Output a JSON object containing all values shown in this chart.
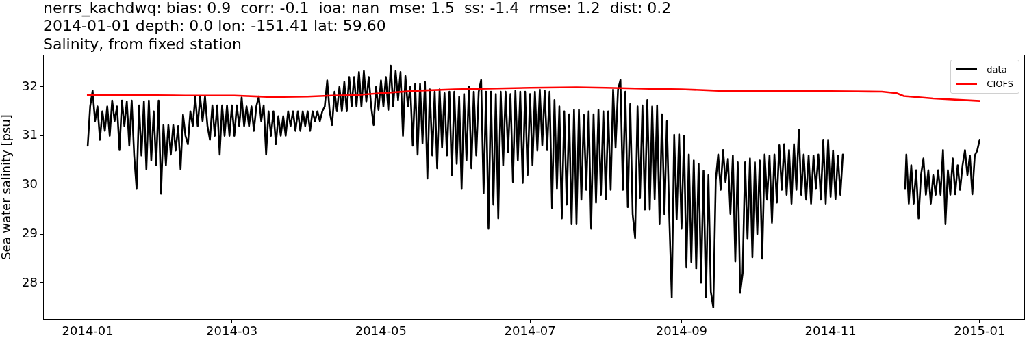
{
  "chart_data": {
    "type": "line",
    "title": "nerrs_kachdwq: bias: 0.9  corr: -0.1  ioa: nan  mse: 1.5  ss: -1.4  rmse: 1.2  dist: 0.2\n2014-01-01 depth: 0.0 lon: -151.41 lat: 59.60\nSalinity, from fixed station",
    "ylabel": "Sea water salinity [psu]",
    "xlim": [
      "2013-12-13T18:00",
      "2015-01-19T06:00"
    ],
    "xticks": [
      "2014-01",
      "2014-03",
      "2014-05",
      "2014-07",
      "2014-09",
      "2014-11",
      "2015-01"
    ],
    "ylim": [
      27.26,
      32.65
    ],
    "yticks": [
      28,
      29,
      30,
      31,
      32
    ],
    "legend": "top right",
    "series": [
      {
        "name": "data",
        "color": "#000000",
        "x": [
          "2014-01-01",
          "2014-01-02",
          "2014-01-03",
          "2014-01-04",
          "2014-01-05",
          "2014-01-06",
          "2014-01-07",
          "2014-01-08",
          "2014-01-09",
          "2014-01-10",
          "2014-01-11",
          "2014-01-12",
          "2014-01-13",
          "2014-01-14",
          "2014-01-15",
          "2014-01-16",
          "2014-01-17",
          "2014-01-18",
          "2014-01-19",
          "2014-01-20",
          "2014-01-21",
          "2014-01-22",
          "2014-01-23",
          "2014-01-24",
          "2014-01-25",
          "2014-01-26",
          "2014-01-27",
          "2014-01-28",
          "2014-01-29",
          "2014-01-30",
          "2014-01-31",
          "2014-02-01",
          "2014-02-02",
          "2014-02-03",
          "2014-02-04",
          "2014-02-05",
          "2014-02-06",
          "2014-02-07",
          "2014-02-08",
          "2014-02-09",
          "2014-02-10",
          "2014-02-11",
          "2014-02-12",
          "2014-02-13",
          "2014-02-14",
          "2014-02-15",
          "2014-02-16",
          "2014-02-17",
          "2014-02-18",
          "2014-02-19",
          "2014-02-20",
          "2014-02-21",
          "2014-02-22",
          "2014-02-23",
          "2014-02-24",
          "2014-02-25",
          "2014-02-26",
          "2014-02-27",
          "2014-02-28",
          "2014-03-01",
          "2014-03-02",
          "2014-03-03",
          "2014-03-04",
          "2014-03-05",
          "2014-03-06",
          "2014-03-07",
          "2014-03-08",
          "2014-03-09",
          "2014-03-10",
          "2014-03-11",
          "2014-03-12",
          "2014-03-13",
          "2014-03-14",
          "2014-03-15",
          "2014-03-16",
          "2014-03-17",
          "2014-03-18",
          "2014-03-19",
          "2014-03-20",
          "2014-03-21",
          "2014-03-22",
          "2014-03-23",
          "2014-03-24",
          "2014-03-25",
          "2014-03-26",
          "2014-03-27",
          "2014-03-28",
          "2014-03-29",
          "2014-03-30",
          "2014-03-31",
          "2014-04-01",
          "2014-04-02",
          "2014-04-03",
          "2014-04-04",
          "2014-04-05",
          "2014-04-06",
          "2014-04-07",
          "2014-04-08",
          "2014-04-09",
          "2014-04-10",
          "2014-04-11",
          "2014-04-12",
          "2014-04-13",
          "2014-04-14",
          "2014-04-15",
          "2014-04-16",
          "2014-04-17",
          "2014-04-18",
          "2014-04-19",
          "2014-04-20",
          "2014-04-21",
          "2014-04-22",
          "2014-04-23",
          "2014-04-24",
          "2014-04-25",
          "2014-04-26",
          "2014-04-27",
          "2014-04-28",
          "2014-04-29",
          "2014-04-30",
          "2014-05-01",
          "2014-05-02",
          "2014-05-03",
          "2014-05-04",
          "2014-05-05",
          "2014-05-06",
          "2014-05-07",
          "2014-05-08",
          "2014-05-09",
          "2014-05-10",
          "2014-05-11",
          "2014-05-12",
          "2014-05-13",
          "2014-05-14",
          "2014-05-15",
          "2014-05-16",
          "2014-05-17",
          "2014-05-18",
          "2014-05-19",
          "2014-05-20",
          "2014-05-21",
          "2014-05-22",
          "2014-05-23",
          "2014-05-24",
          "2014-05-25",
          "2014-05-26",
          "2014-05-27",
          "2014-05-28",
          "2014-05-29",
          "2014-05-30",
          "2014-05-31",
          "2014-06-01",
          "2014-06-02",
          "2014-06-03",
          "2014-06-04",
          "2014-06-05",
          "2014-06-06",
          "2014-06-07",
          "2014-06-08",
          "2014-06-09",
          "2014-06-10",
          "2014-06-11",
          "2014-06-12",
          "2014-06-13",
          "2014-06-14",
          "2014-06-15",
          "2014-06-16",
          "2014-06-17",
          "2014-06-18",
          "2014-06-19",
          "2014-06-20",
          "2014-06-21",
          "2014-06-22",
          "2014-06-23",
          "2014-06-24",
          "2014-06-25",
          "2014-06-26",
          "2014-06-27",
          "2014-06-28",
          "2014-06-29",
          "2014-06-30",
          "2014-07-01",
          "2014-07-02",
          "2014-07-03",
          "2014-07-04",
          "2014-07-05",
          "2014-07-06",
          "2014-07-07",
          "2014-07-08",
          "2014-07-09",
          "2014-07-10",
          "2014-07-11",
          "2014-07-12",
          "2014-07-13",
          "2014-07-14",
          "2014-07-15",
          "2014-07-16",
          "2014-07-17",
          "2014-07-18",
          "2014-07-19",
          "2014-07-20",
          "2014-07-21",
          "2014-07-22",
          "2014-07-23",
          "2014-07-24",
          "2014-07-25",
          "2014-07-26",
          "2014-07-27",
          "2014-07-28",
          "2014-07-29",
          "2014-07-30",
          "2014-07-31",
          "2014-08-01",
          "2014-08-02",
          "2014-08-03",
          "2014-08-04",
          "2014-08-05",
          "2014-08-06",
          "2014-08-07",
          "2014-08-08",
          "2014-08-09",
          "2014-08-10",
          "2014-08-11",
          "2014-08-12",
          "2014-08-13",
          "2014-08-14",
          "2014-08-15",
          "2014-08-16",
          "2014-08-17",
          "2014-08-18",
          "2014-08-19",
          "2014-08-20",
          "2014-08-21",
          "2014-08-22",
          "2014-08-23",
          "2014-08-24",
          "2014-08-25",
          "2014-08-26",
          "2014-08-27",
          "2014-08-28",
          "2014-08-29",
          "2014-08-30",
          "2014-08-31",
          "2014-09-01",
          "2014-09-02",
          "2014-09-03",
          "2014-09-04",
          "2014-09-05",
          "2014-09-06",
          "2014-09-07",
          "2014-09-08",
          "2014-09-09",
          "2014-09-10",
          "2014-09-11",
          "2014-09-12",
          "2014-09-13",
          "2014-09-14",
          "2014-09-15",
          "2014-09-16",
          "2014-09-17",
          "2014-09-18",
          "2014-09-19",
          "2014-09-20",
          "2014-09-21",
          "2014-09-22",
          "2014-09-23",
          "2014-09-24",
          "2014-09-25",
          "2014-09-26",
          "2014-09-27",
          "2014-09-28",
          "2014-09-29",
          "2014-09-30",
          "2014-10-01",
          "2014-10-02",
          "2014-10-03",
          "2014-10-04",
          "2014-10-05",
          "2014-10-06",
          "2014-10-07",
          "2014-10-08",
          "2014-10-09",
          "2014-10-10",
          "2014-10-11",
          "2014-10-12",
          "2014-10-13",
          "2014-10-14",
          "2014-10-15",
          "2014-10-16",
          "2014-10-17",
          "2014-10-18",
          "2014-10-19",
          "2014-10-20",
          "2014-10-21",
          "2014-10-22",
          "2014-10-23",
          "2014-10-24",
          "2014-10-25",
          "2014-10-26",
          "2014-10-27",
          "2014-10-28",
          "2014-10-29",
          "2014-10-30",
          "2014-10-31",
          "2014-11-01",
          "2014-11-02",
          "2014-11-03",
          "2014-11-04",
          "2014-11-05",
          "2014-11-06",
          "2014-11-17",
          "2014-12-01T12:00",
          "2014-12-02",
          "2014-12-03",
          "2014-12-04",
          "2014-12-05",
          "2014-12-06",
          "2014-12-07",
          "2014-12-08",
          "2014-12-09",
          "2014-12-10",
          "2014-12-11",
          "2014-12-12",
          "2014-12-13",
          "2014-12-14",
          "2014-12-15",
          "2014-12-16",
          "2014-12-17",
          "2014-12-18",
          "2014-12-19",
          "2014-12-20",
          "2014-12-21",
          "2014-12-22",
          "2014-12-23",
          "2014-12-24",
          "2014-12-25",
          "2014-12-26",
          "2014-12-27",
          "2014-12-28",
          "2014-12-29",
          "2014-12-30",
          "2014-12-31",
          "2015-01-01"
        ],
        "values": [
          30.8,
          31.6,
          31.92,
          31.3,
          31.6,
          30.92,
          31.5,
          31.1,
          31.6,
          31.0,
          31.72,
          31.3,
          31.6,
          30.71,
          31.72,
          31.2,
          31.7,
          30.8,
          31.72,
          30.6,
          29.92,
          31.62,
          30.6,
          31.7,
          30.32,
          31.72,
          30.5,
          31.5,
          30.4,
          31.72,
          29.82,
          31.22,
          30.4,
          31.22,
          30.62,
          31.22,
          30.7,
          31.2,
          30.32,
          31.43,
          31.0,
          30.83,
          31.5,
          31.2,
          31.8,
          31.2,
          31.8,
          31.3,
          31.8,
          31.2,
          30.92,
          31.62,
          31.0,
          31.62,
          30.62,
          31.62,
          31.0,
          31.62,
          31.0,
          31.62,
          31.0,
          31.62,
          31.2,
          31.78,
          31.2,
          31.6,
          31.2,
          31.6,
          31.1,
          31.6,
          31.8,
          31.3,
          31.62,
          30.62,
          31.5,
          31.0,
          31.5,
          30.83,
          31.4,
          31.0,
          31.4,
          31.0,
          31.5,
          31.2,
          31.5,
          31.1,
          31.5,
          31.1,
          31.5,
          31.2,
          31.5,
          31.1,
          31.5,
          31.3,
          31.5,
          31.3,
          31.5,
          31.6,
          32.13,
          31.5,
          31.22,
          31.9,
          31.5,
          32.0,
          31.5,
          32.1,
          31.5,
          32.2,
          31.6,
          32.2,
          31.6,
          32.3,
          31.6,
          32.32,
          31.7,
          32.2,
          31.6,
          31.22,
          32.0,
          31.53,
          32.13,
          31.6,
          32.2,
          31.53,
          32.43,
          31.6,
          32.32,
          31.73,
          32.3,
          31.0,
          32.22,
          31.6,
          32.0,
          30.8,
          32.06,
          30.62,
          32.06,
          30.85,
          32.1,
          30.13,
          31.95,
          30.6,
          31.9,
          30.34,
          31.95,
          30.76,
          31.87,
          30.6,
          31.9,
          30.2,
          31.9,
          30.43,
          31.8,
          29.92,
          31.85,
          30.5,
          32.0,
          30.34,
          31.9,
          30.6,
          31.9,
          32.14,
          29.83,
          31.9,
          29.11,
          31.9,
          29.6,
          31.85,
          29.32,
          31.9,
          30.4,
          31.9,
          30.67,
          31.85,
          30.06,
          31.92,
          30.5,
          31.9,
          30.04,
          31.9,
          30.2,
          31.85,
          30.4,
          31.9,
          30.7,
          31.94,
          30.81,
          31.92,
          30.71,
          31.9,
          29.53,
          31.73,
          29.92,
          31.6,
          29.32,
          31.5,
          29.6,
          31.44,
          29.2,
          31.53,
          29.2,
          31.53,
          29.7,
          31.43,
          29.9,
          31.5,
          29.11,
          31.44,
          29.64,
          31.53,
          29.8,
          31.5,
          29.71,
          31.5,
          29.9,
          31.94,
          30.76,
          31.94,
          32.14,
          29.9,
          31.9,
          29.55,
          31.65,
          29.4,
          28.92,
          31.6,
          29.73,
          31.62,
          29.5,
          31.73,
          29.5,
          31.6,
          29.71,
          31.62,
          29.2,
          31.44,
          29.4,
          31.3,
          29.32,
          27.71,
          31.02,
          29.3,
          31.03,
          29.11,
          31.0,
          28.32,
          30.62,
          28.43,
          30.5,
          28.29,
          30.43,
          28.01,
          30.29,
          27.71,
          30.2,
          27.82,
          27.5,
          30.1,
          30.62,
          29.9,
          30.71,
          30.06,
          30.53,
          29.41,
          30.6,
          28.44,
          30.46,
          27.8,
          28.2,
          30.46,
          28.9,
          30.54,
          28.53,
          30.46,
          29.0,
          30.5,
          28.5,
          30.62,
          29.7,
          30.6,
          29.23,
          30.62,
          29.64,
          30.81,
          29.9,
          30.83,
          29.8,
          30.71,
          29.62,
          30.83,
          29.9,
          31.13,
          29.8,
          30.62,
          29.7,
          30.6,
          29.62,
          30.6,
          29.92,
          30.62,
          29.7,
          30.92,
          29.62,
          30.92,
          29.76,
          30.7,
          29.71,
          30.6,
          29.8,
          30.62,
          null,
          29.92,
          30.62,
          29.62,
          30.4,
          29.62,
          30.3,
          29.32,
          30.2,
          30.54,
          29.8,
          30.3,
          29.62,
          30.2,
          29.8,
          30.3,
          29.8,
          30.71,
          29.2,
          30.3,
          29.8,
          30.54,
          29.81,
          30.4,
          29.9,
          30.4,
          30.71,
          30.2,
          30.6,
          29.81,
          30.6,
          30.7,
          30.92
        ]
      },
      {
        "name": "CIOFS",
        "color": "#ff0000",
        "x": [
          "2014-01-01",
          "2014-01-11",
          "2014-01-21",
          "2014-02-10",
          "2014-03-02",
          "2014-03-17",
          "2014-04-01",
          "2014-04-11",
          "2014-04-21",
          "2014-05-01",
          "2014-05-16",
          "2014-05-31",
          "2014-07-01",
          "2014-07-20",
          "2014-08-01",
          "2014-08-19",
          "2014-09-01",
          "2014-09-16",
          "2014-10-01",
          "2014-11-01",
          "2014-11-22",
          "2014-11-28",
          "2014-12-01",
          "2014-12-13",
          "2015-01-01"
        ],
        "values": [
          31.83,
          31.84,
          31.83,
          31.82,
          31.82,
          31.79,
          31.8,
          31.82,
          31.83,
          31.87,
          31.92,
          31.95,
          31.98,
          31.99,
          31.98,
          31.96,
          31.95,
          31.92,
          31.92,
          31.91,
          31.9,
          31.87,
          31.81,
          31.76,
          31.71
        ]
      }
    ]
  }
}
